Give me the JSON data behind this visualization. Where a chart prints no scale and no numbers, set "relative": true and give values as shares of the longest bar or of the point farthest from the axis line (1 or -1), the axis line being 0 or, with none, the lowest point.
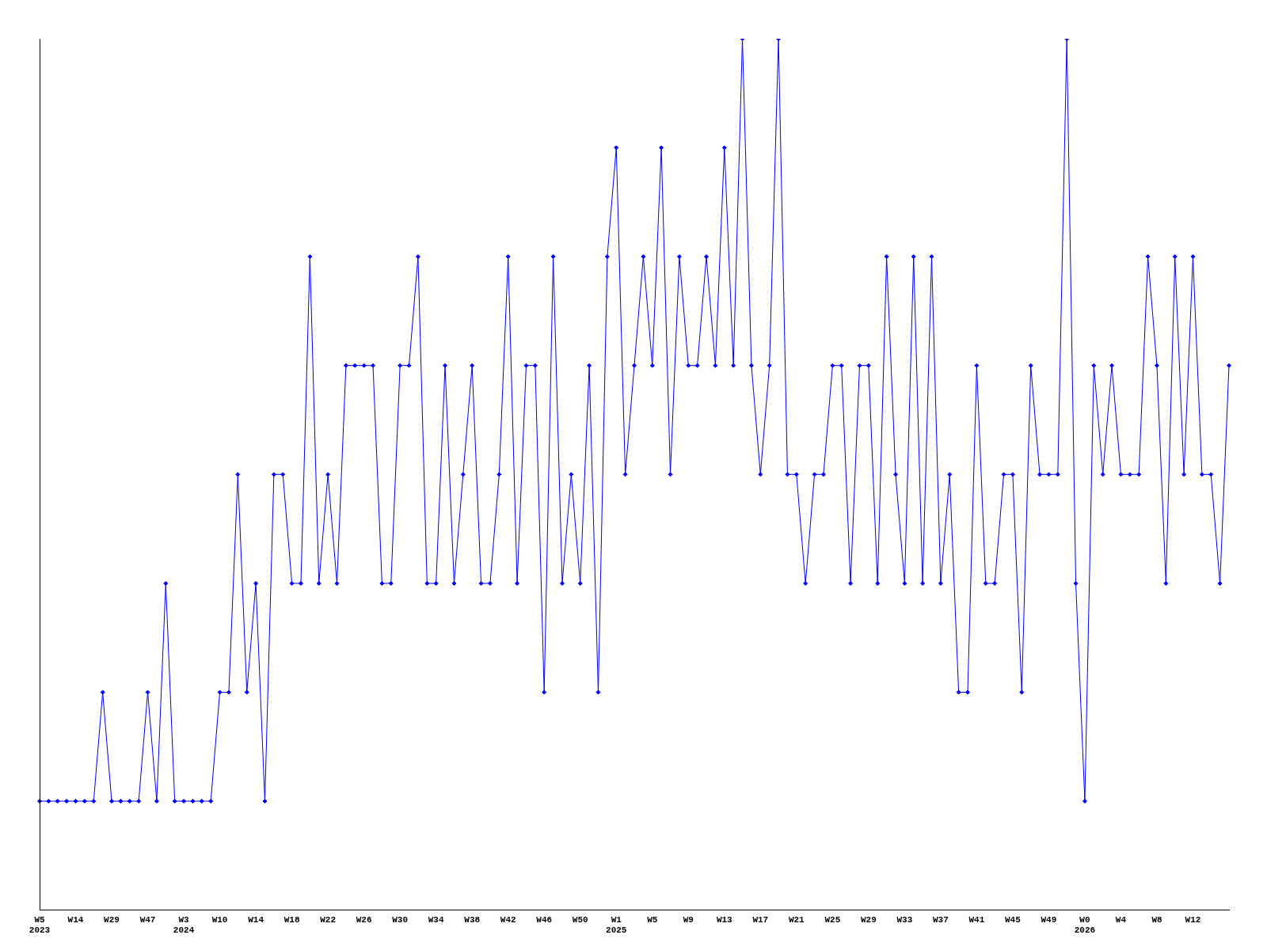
{
  "chart_data": {
    "type": "line",
    "relative": true,
    "color": "#0000ff",
    "marker": "diamond",
    "categories": [
      "W5\n2023",
      null,
      null,
      null,
      "W14",
      null,
      null,
      null,
      "W29",
      null,
      null,
      null,
      "W47",
      null,
      null,
      null,
      "W3\n2024",
      null,
      null,
      null,
      "W10",
      null,
      null,
      null,
      "W14",
      null,
      null,
      null,
      "W18",
      null,
      null,
      null,
      "W22",
      null,
      null,
      null,
      "W26",
      null,
      null,
      null,
      "W30",
      null,
      null,
      null,
      "W34",
      null,
      null,
      null,
      "W38",
      null,
      null,
      null,
      "W42",
      null,
      null,
      null,
      "W46",
      null,
      null,
      null,
      "W50",
      null,
      null,
      null,
      "W1\n2025",
      null,
      null,
      null,
      "W5",
      null,
      null,
      null,
      "W9",
      null,
      null,
      null,
      "W13",
      null,
      null,
      null,
      "W17",
      null,
      null,
      null,
      "W21",
      null,
      null,
      null,
      "W25",
      null,
      null,
      null,
      "W29",
      null,
      null,
      null,
      "W33",
      null,
      null,
      null,
      "W37",
      null,
      null,
      null,
      "W41",
      null,
      null,
      null,
      "W45",
      null,
      null,
      null,
      "W49",
      null,
      null,
      null,
      "W0\n2026",
      null,
      null,
      null,
      "W4",
      null,
      null,
      null,
      "W8",
      null,
      null,
      null,
      "W12",
      null,
      null,
      null,
      null
    ],
    "values": [
      0.125,
      0.125,
      0.125,
      0.125,
      0.125,
      0.125,
      0.125,
      0.25,
      0.125,
      0.125,
      0.125,
      0.125,
      0.25,
      0.125,
      0.375,
      0.125,
      0.125,
      0.125,
      0.125,
      0.125,
      0.25,
      0.25,
      0.5,
      0.25,
      0.375,
      0.125,
      0.5,
      0.5,
      0.375,
      0.375,
      0.75,
      0.375,
      0.5,
      0.375,
      0.625,
      0.625,
      0.625,
      0.625,
      0.375,
      0.375,
      0.625,
      0.625,
      0.75,
      0.375,
      0.375,
      0.625,
      0.375,
      0.5,
      0.625,
      0.375,
      0.375,
      0.5,
      0.75,
      0.375,
      0.625,
      0.625,
      0.25,
      0.75,
      0.375,
      0.5,
      0.375,
      0.625,
      0.25,
      0.75,
      0.875,
      0.5,
      0.625,
      0.75,
      0.625,
      0.875,
      0.5,
      0.75,
      0.625,
      0.625,
      0.75,
      0.625,
      0.875,
      0.625,
      1,
      0.625,
      0.5,
      0.625,
      1,
      0.5,
      0.5,
      0.375,
      0.5,
      0.5,
      0.625,
      0.625,
      0.375,
      0.625,
      0.625,
      0.375,
      0.75,
      0.5,
      0.375,
      0.75,
      0.375,
      0.75,
      0.375,
      0.5,
      0.25,
      0.25,
      0.625,
      0.375,
      0.375,
      0.5,
      0.5,
      0.25,
      0.625,
      0.5,
      0.5,
      0.5,
      1,
      0.375,
      0.125,
      0.625,
      0.5,
      0.625,
      0.5,
      0.5,
      0.5,
      0.75,
      0.625,
      0.375,
      0.75,
      0.5,
      0.75,
      0.5,
      0.5,
      0.375,
      0.625
    ]
  }
}
